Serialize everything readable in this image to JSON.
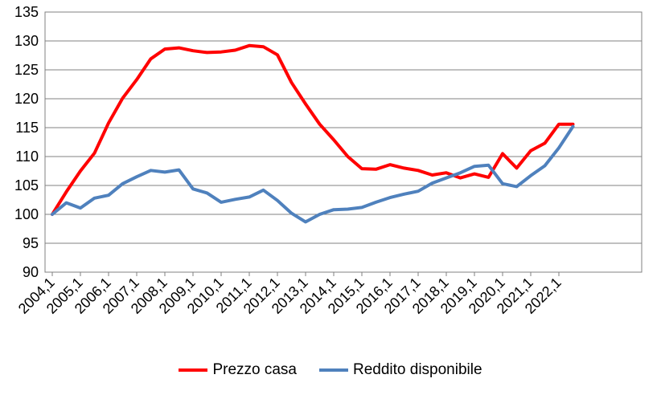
{
  "chart_data": {
    "type": "line",
    "title": "",
    "xlabel": "",
    "ylabel": "",
    "ylim": [
      90,
      135
    ],
    "yticks": [
      90,
      95,
      100,
      105,
      110,
      115,
      120,
      125,
      130,
      135
    ],
    "x_tick_labels": [
      "2004,1",
      "2005,1",
      "2006,1",
      "2007,1",
      "2008,1",
      "2009,1",
      "2010,1",
      "2011,1",
      "2012,1",
      "2013,1",
      "2014,1",
      "2015,1",
      "2016,1",
      "2017,1",
      "2018,1",
      "2019,1",
      "2020,1",
      "2021,1",
      "2022,1"
    ],
    "x": [
      "2004,1",
      "2004,3",
      "2005,1",
      "2005,3",
      "2006,1",
      "2006,3",
      "2007,1",
      "2007,3",
      "2008,1",
      "2008,3",
      "2009,1",
      "2009,3",
      "2010,1",
      "2010,3",
      "2011,1",
      "2011,3",
      "2012,1",
      "2012,3",
      "2013,1",
      "2013,3",
      "2014,1",
      "2014,3",
      "2015,1",
      "2015,3",
      "2016,1",
      "2016,3",
      "2017,1",
      "2017,3",
      "2018,1",
      "2018,3",
      "2019,1",
      "2019,3",
      "2020,1",
      "2020,3",
      "2021,1",
      "2021,3",
      "2022,1",
      "2022,3"
    ],
    "grid": true,
    "legend_position": "bottom",
    "series": [
      {
        "name": "Prezzo casa",
        "color": "#ff0000",
        "values": [
          100,
          103.9,
          107.5,
          110.6,
          115.8,
          120.1,
          123.3,
          126.9,
          128.6,
          128.8,
          128.3,
          128.0,
          128.1,
          128.4,
          129.2,
          129.0,
          127.6,
          122.8,
          119.1,
          115.6,
          112.9,
          110.0,
          107.9,
          107.8,
          108.6,
          108.0,
          107.6,
          106.8,
          107.2,
          106.3,
          107.0,
          106.4,
          110.5,
          108.0,
          111.0,
          112.3,
          115.6,
          115.6
        ]
      },
      {
        "name": "Reddito disponibile",
        "color": "#4f81bd",
        "values": [
          100,
          102.0,
          101.1,
          102.8,
          103.3,
          105.3,
          106.5,
          107.6,
          107.3,
          107.7,
          104.4,
          103.7,
          102.1,
          102.6,
          103.0,
          104.2,
          102.4,
          100.2,
          98.7,
          100.0,
          100.8,
          100.9,
          101.2,
          102.1,
          102.9,
          103.5,
          104.0,
          105.4,
          106.3,
          107.2,
          108.3,
          108.5,
          105.3,
          104.8,
          106.7,
          108.4,
          111.5,
          115.2
        ]
      }
    ]
  }
}
